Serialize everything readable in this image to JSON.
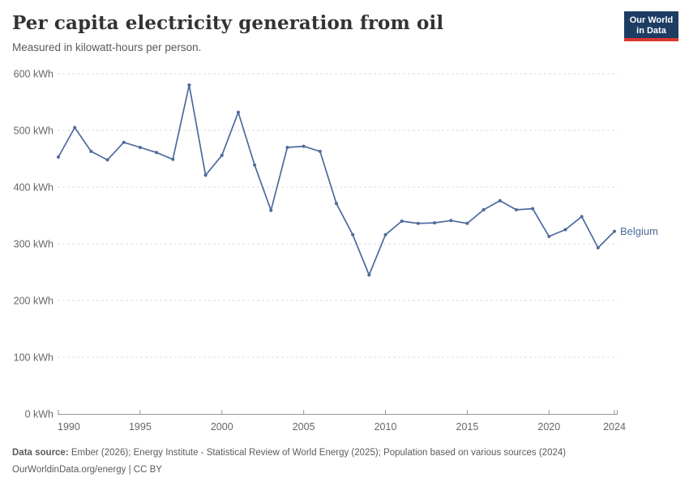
{
  "header": {
    "title": "Per capita electricity generation from oil",
    "subtitle": "Measured in kilowatt-hours per person."
  },
  "logo": {
    "line1": "Our World",
    "line2": "in Data",
    "bg_color": "#1d3d63",
    "accent_color": "#dc3830"
  },
  "chart_data": {
    "type": "line",
    "title": "Per capita electricity generation from oil",
    "subtitle": "Measured in kilowatt-hours per person.",
    "unit": "kWh",
    "x": [
      1990,
      1991,
      1992,
      1993,
      1994,
      1995,
      1996,
      1997,
      1998,
      1999,
      2000,
      2001,
      2002,
      2003,
      2004,
      2005,
      2006,
      2007,
      2008,
      2009,
      2010,
      2011,
      2012,
      2013,
      2014,
      2015,
      2016,
      2017,
      2018,
      2019,
      2020,
      2021,
      2022,
      2023,
      2024
    ],
    "series": [
      {
        "name": "Belgium",
        "color": "#4c6a9c",
        "values": [
          453,
          505,
          463,
          448,
          479,
          470,
          461,
          449,
          580,
          421,
          456,
          532,
          439,
          359,
          470,
          472,
          463,
          371,
          316,
          245,
          316,
          340,
          336,
          337,
          341,
          336,
          360,
          376,
          360,
          362,
          313,
          325,
          348,
          293,
          322
        ]
      }
    ],
    "ylim": [
      0,
      600
    ],
    "yticks": [
      0,
      100,
      200,
      300,
      400,
      500,
      600
    ],
    "ytick_labels": [
      "0 kWh",
      "100 kWh",
      "200 kWh",
      "300 kWh",
      "400 kWh",
      "500 kWh",
      "600 kWh"
    ],
    "xticks": [
      1990,
      1995,
      2000,
      2005,
      2010,
      2015,
      2020,
      2024
    ],
    "grid": "horizontal-dashed",
    "legend_position": "end-of-line-label",
    "colors": {
      "gridline": "#dddddd",
      "axis": "#999999",
      "tick_text": "#666666"
    }
  },
  "footer": {
    "source_label": "Data source:",
    "source_text": " Ember (2026); Energy Institute - Statistical Review of World Energy (2025); Population based on various sources (2024)",
    "citation": "OurWorldinData.org/energy | CC BY"
  }
}
